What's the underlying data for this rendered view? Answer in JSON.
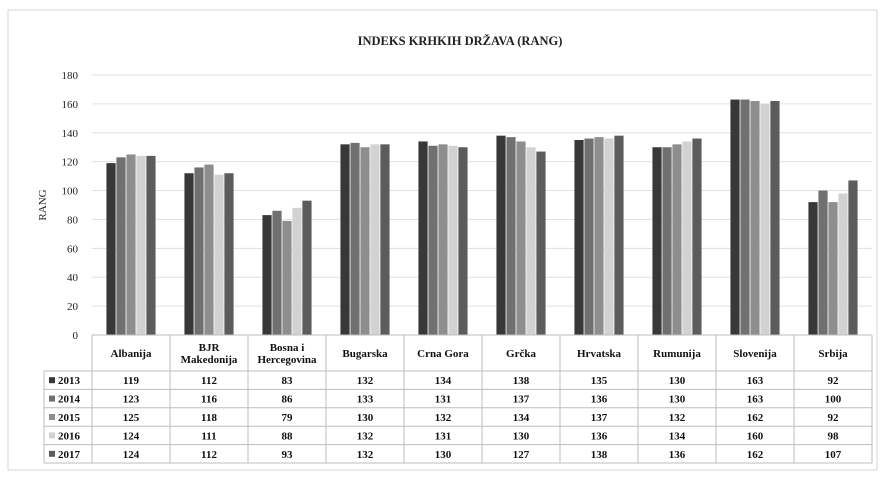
{
  "chart_data": {
    "type": "bar",
    "title": "INDEKS KRHKIH DRŽAVA (RANG)",
    "xlabel": "",
    "ylabel": "RANG",
    "ylim": [
      0,
      180
    ],
    "yticks": [
      0,
      20,
      40,
      60,
      80,
      100,
      120,
      140,
      160,
      180
    ],
    "grid": true,
    "legend": "data-table",
    "categories": [
      [
        "Albanija"
      ],
      [
        "BJR",
        "Makedonija"
      ],
      [
        "Bosna i",
        "Hercegovina"
      ],
      [
        "Bugarska"
      ],
      [
        "Crna Gora"
      ],
      [
        "Grčka"
      ],
      [
        "Hrvatska"
      ],
      [
        "Rumunija"
      ],
      [
        "Slovenija"
      ],
      [
        "Srbija"
      ]
    ],
    "series": [
      {
        "name": "2013",
        "color": "#383838",
        "values": [
          119,
          112,
          83,
          132,
          134,
          138,
          135,
          130,
          163,
          92
        ]
      },
      {
        "name": "2014",
        "color": "#707070",
        "values": [
          123,
          116,
          86,
          133,
          131,
          137,
          136,
          130,
          163,
          100
        ]
      },
      {
        "name": "2015",
        "color": "#8e8e8e",
        "values": [
          125,
          118,
          79,
          130,
          132,
          134,
          137,
          132,
          162,
          92
        ]
      },
      {
        "name": "2016",
        "color": "#d2d2d2",
        "values": [
          124,
          111,
          88,
          132,
          131,
          130,
          136,
          134,
          160,
          98
        ]
      },
      {
        "name": "2017",
        "color": "#5c5c5c",
        "values": [
          124,
          112,
          93,
          132,
          130,
          127,
          138,
          136,
          162,
          107
        ]
      }
    ]
  }
}
